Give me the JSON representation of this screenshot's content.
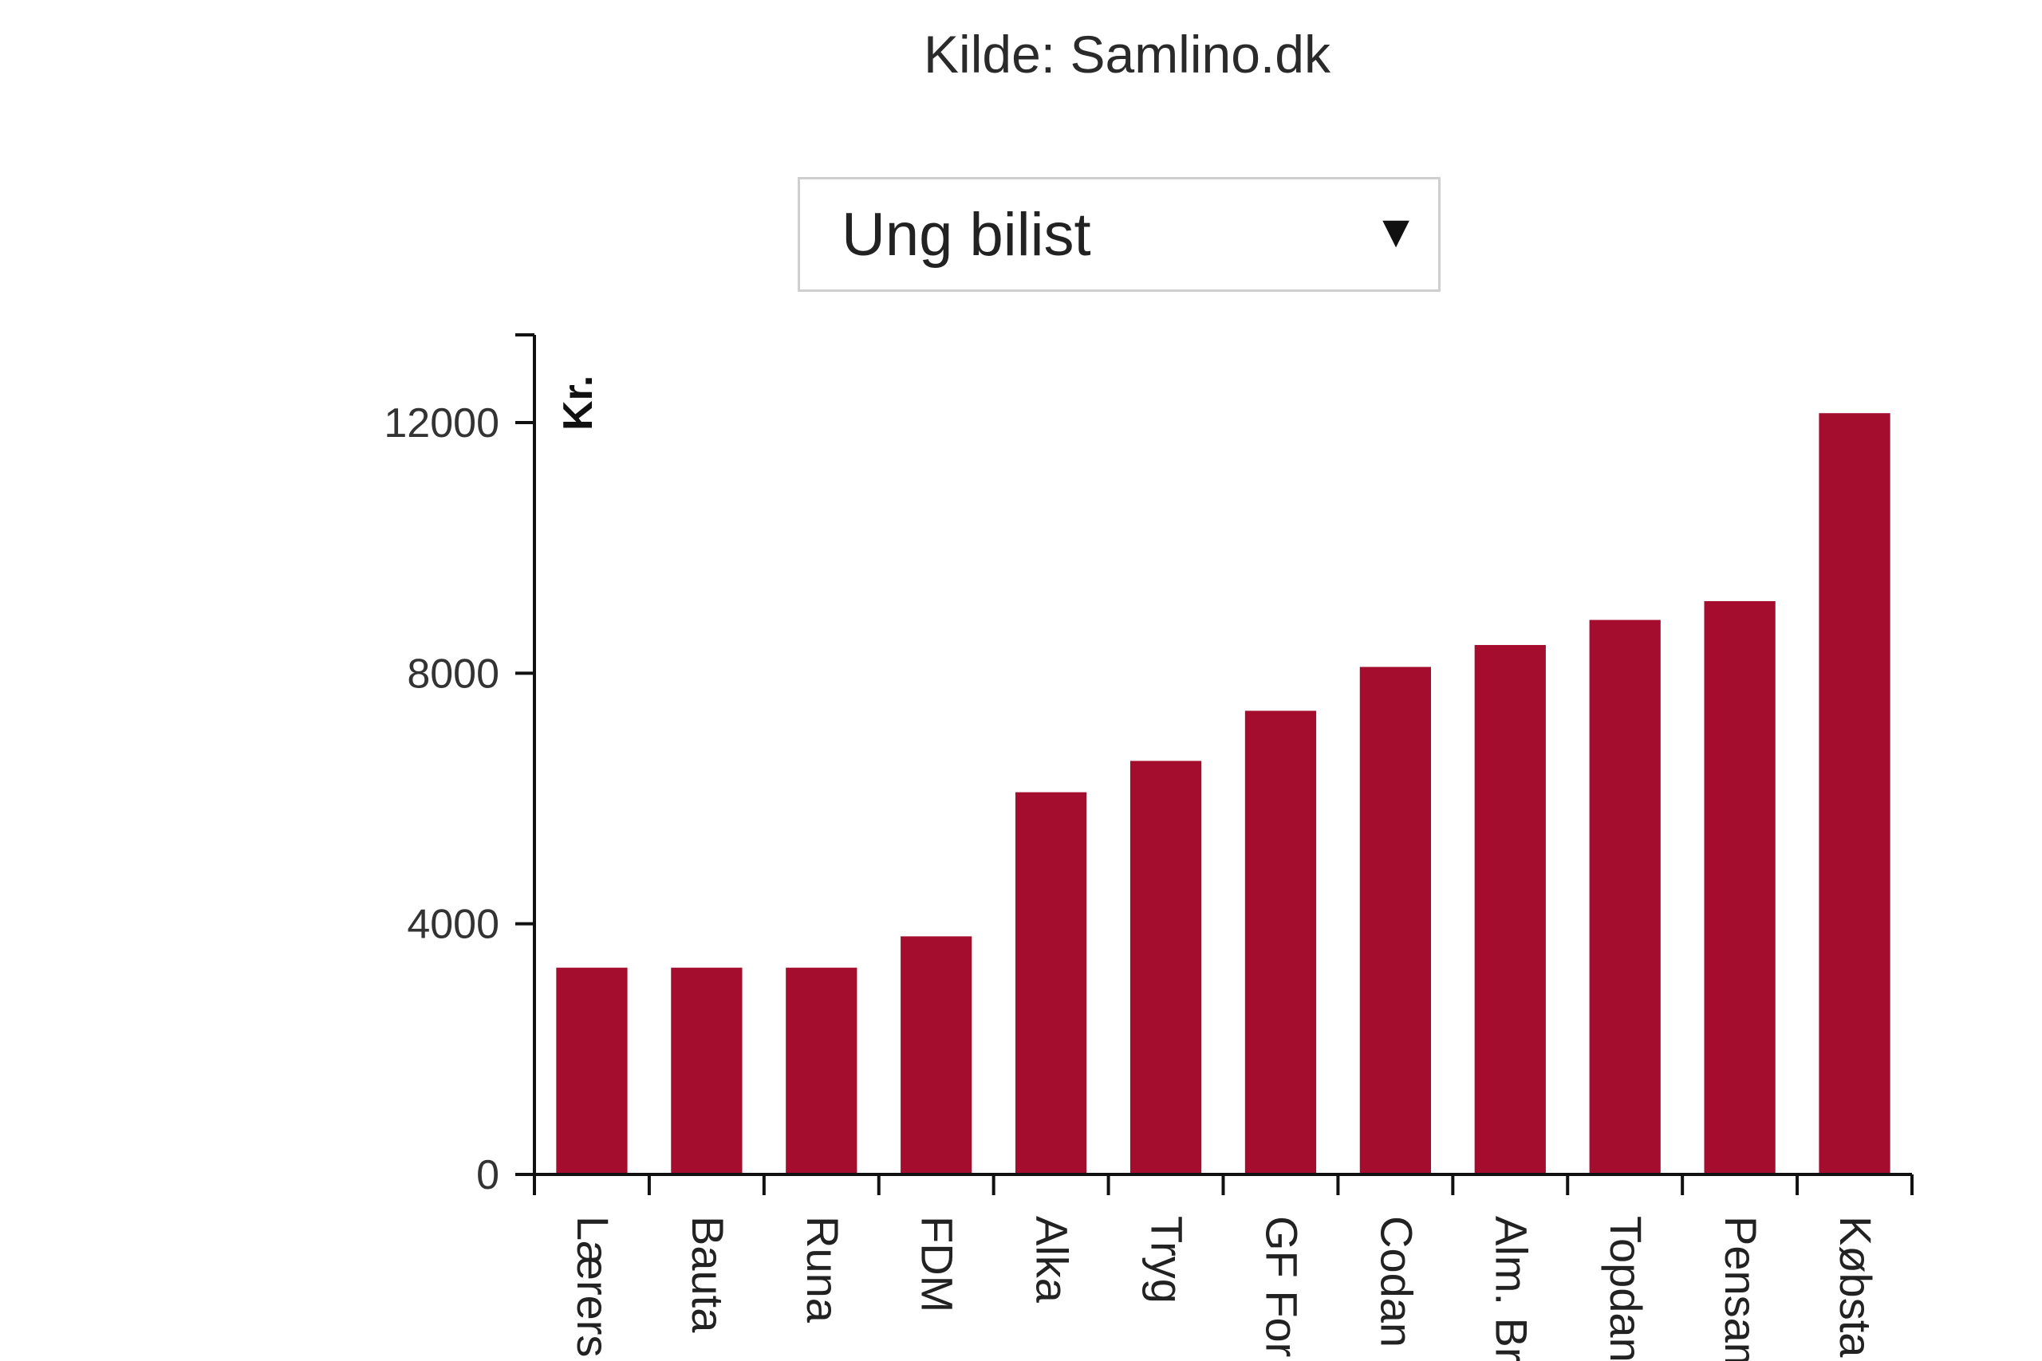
{
  "source_text": "Kilde: Samlino.dk",
  "dropdown": {
    "selected": "Ung bilist",
    "arrow_icon": "triangle-down-icon"
  },
  "colors": {
    "bar": "#a50d2e",
    "axis": "#111111",
    "text": "#222222"
  },
  "chart_data": {
    "type": "bar",
    "categories": [
      "Lærers",
      "Bauta",
      "Runa",
      "FDM",
      "Alka",
      "Tryg",
      "GF For",
      "Codan",
      "Alm. Br",
      "Topdan",
      "Pensam",
      "Købsta"
    ],
    "values": [
      3300,
      3300,
      3300,
      3800,
      6100,
      6600,
      7400,
      8100,
      8450,
      8850,
      9150,
      12150
    ],
    "ylabel": "Kr.",
    "xlabel": "",
    "ylim": [
      0,
      13500
    ],
    "yticks": [
      0,
      4000,
      8000,
      12000
    ],
    "grid": false,
    "legend": "none"
  }
}
